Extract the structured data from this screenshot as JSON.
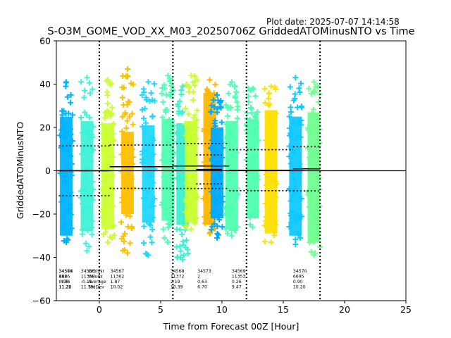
{
  "plot_date": "Plot date: 2025-07-07 14:14:58",
  "chart_data": {
    "type": "scatter",
    "title": "S-O3M_GOME_VOD_XX_M03_20250706Z GriddedATOMinusNTO vs Time",
    "xlabel": "Time from Forecast 00Z [Hour]",
    "ylabel": "GriddedATOMinusNTO",
    "xlim": [
      -3.5,
      25
    ],
    "ylim": [
      -60,
      60
    ],
    "xticks": [
      0,
      5,
      10,
      15,
      20,
      25
    ],
    "yticks": [
      -60,
      -40,
      -20,
      0,
      20,
      40,
      60
    ],
    "grid": false,
    "marker": "+",
    "vlines_dotted": [
      0,
      6,
      12,
      18
    ],
    "zero_line": 0,
    "strips": [
      {
        "x": -2.7,
        "low": -33,
        "high": 41,
        "core_low": -30,
        "core_high": 25,
        "color": "#00b4ff"
      },
      {
        "x": -1.0,
        "low": -37,
        "high": 43,
        "core_low": -28,
        "core_high": 23,
        "color": "#3ff2d8"
      },
      {
        "x": 0.7,
        "low": -33,
        "high": 42,
        "core_low": -27,
        "core_high": 22,
        "color": "#ccff33"
      },
      {
        "x": 2.3,
        "low": -38,
        "high": 47,
        "core_low": -20,
        "core_high": 18,
        "color": "#ffc000"
      },
      {
        "x": 4.0,
        "low": -39,
        "high": 41,
        "core_low": -24,
        "core_high": 21,
        "color": "#20d8ff"
      },
      {
        "x": 5.6,
        "low": -33,
        "high": 44,
        "core_low": -23,
        "core_high": 24,
        "color": "#50ffb0"
      },
      {
        "x": 6.8,
        "low": -41,
        "high": 39,
        "core_low": -25,
        "core_high": 22,
        "color": "#3cf0d0"
      },
      {
        "x": 7.5,
        "low": -27,
        "high": 44,
        "core_low": -24,
        "core_high": 23,
        "color": "#c8ff30"
      },
      {
        "x": 9.0,
        "low": -29,
        "high": 42,
        "core_low": -25,
        "core_high": 36,
        "color": "#ffb800"
      },
      {
        "x": 9.6,
        "low": -31,
        "high": 35,
        "core_low": -22,
        "core_high": 20,
        "color": "#00aaff"
      },
      {
        "x": 10.8,
        "low": -30,
        "high": 41,
        "core_low": -27,
        "core_high": 23,
        "color": "#50ffb0"
      },
      {
        "x": 12.5,
        "low": -26,
        "high": 38,
        "core_low": -22,
        "core_high": 24,
        "color": "#50ffb0"
      },
      {
        "x": 14.0,
        "low": -33,
        "high": 39,
        "core_low": -29,
        "core_high": 28,
        "color": "#ffe000"
      },
      {
        "x": 16.0,
        "low": -34,
        "high": 43,
        "core_low": -30,
        "core_high": 25,
        "color": "#10c8ff"
      },
      {
        "x": 17.5,
        "low": -39,
        "high": 41,
        "core_low": -33,
        "core_high": 27,
        "color": "#70ff90"
      }
    ],
    "mean_lines": [
      {
        "x0": -3.3,
        "x1": 0.85,
        "y": 0
      },
      {
        "x0": 0.85,
        "x1": 6.0,
        "y": 1.87
      },
      {
        "x0": 6.0,
        "x1": 10.6,
        "y": 2.19
      },
      {
        "x0": 7.9,
        "x1": 10.0,
        "y": 0.63
      },
      {
        "x0": 10.6,
        "x1": 15.8,
        "y": 0.26
      },
      {
        "x0": 15.8,
        "x1": 18.0,
        "y": 0.9
      }
    ],
    "std_lines": [
      {
        "x0": -3.3,
        "x1": 0.85,
        "y_hi": 11.5,
        "y_lo": -11.5
      },
      {
        "x0": 0.85,
        "x1": 6.0,
        "y_hi": 11.89,
        "y_lo": -8.15
      },
      {
        "x0": 6.0,
        "x1": 10.6,
        "y_hi": 12.58,
        "y_lo": -8.2
      },
      {
        "x0": 7.9,
        "x1": 10.0,
        "y_hi": 7.33,
        "y_lo": -6.07
      },
      {
        "x0": 10.6,
        "x1": 15.8,
        "y_hi": 9.73,
        "y_lo": -9.21
      },
      {
        "x0": 15.8,
        "x1": 18.0,
        "y_hi": 11.1,
        "y_lo": -9.3
      }
    ],
    "annotations": [
      {
        "x": -3.3,
        "lines": [
          "34566",
          "4426",
          "-4.76",
          "11.26"
        ]
      },
      {
        "x": -3.3,
        "lines": [
          "34574",
          "886",
          "0.98",
          "11.72"
        ]
      },
      {
        "x": -1.5,
        "lines": [
          "34566",
          "11359",
          "-0.11",
          "11.79"
        ]
      },
      {
        "x": -0.9,
        "lines": [
          "OrbitNr",
          "Values",
          "Average",
          "StdDev"
        ]
      },
      {
        "x": 0.9,
        "lines": [
          "34567",
          "11362",
          "1.87",
          "10.02"
        ]
      },
      {
        "x": 5.8,
        "lines": [
          "34568",
          "11372",
          "2.19",
          "10.39"
        ]
      },
      {
        "x": 8.0,
        "lines": [
          "34573",
          "2",
          "0.63",
          "6.70"
        ]
      },
      {
        "x": 10.8,
        "lines": [
          "34569",
          "11353",
          "0.26",
          "9.47"
        ]
      },
      {
        "x": 15.8,
        "lines": [
          "34570",
          "6695",
          "0.90",
          "10.20"
        ]
      }
    ]
  }
}
